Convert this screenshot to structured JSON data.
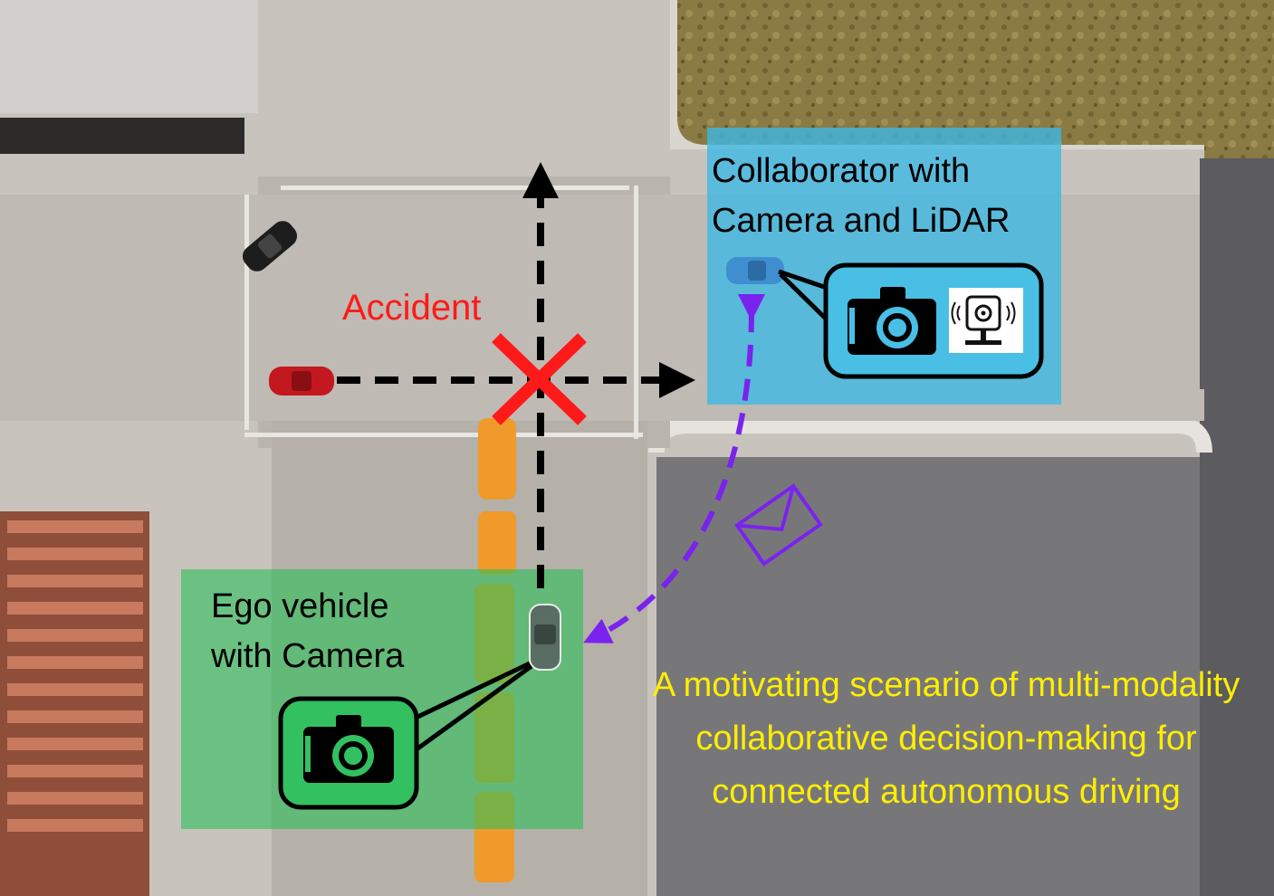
{
  "collaborator": {
    "line1": "Collaborator with",
    "line2": "Camera and LiDAR",
    "box_color": "#49bfe6",
    "sensors": [
      "camera-icon",
      "lidar-icon"
    ]
  },
  "ego": {
    "line1": "Ego vehicle",
    "line2": "with Camera",
    "box_color": "#33c060",
    "sensors": [
      "camera-icon"
    ]
  },
  "accident": {
    "label": "Accident",
    "color": "#ff1a1a"
  },
  "message": {
    "icon": "envelope-icon",
    "color": "#7a22ee"
  },
  "caption": {
    "text": "A motivating scenario of multi-modality collaborative decision-making for connected autonomous driving",
    "color": "#ffee00"
  }
}
